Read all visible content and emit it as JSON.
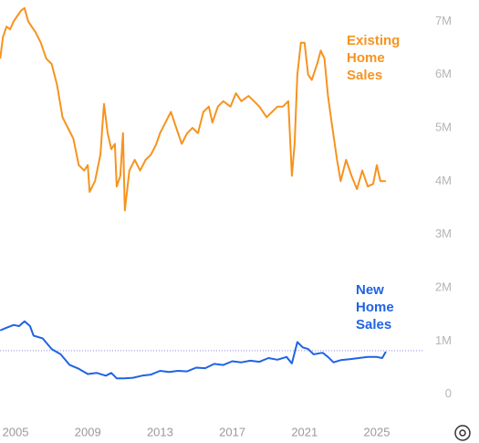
{
  "chart_data": {
    "type": "line",
    "xlim": [
      2004.14,
      2026.87
    ],
    "xticks": [
      2005,
      2009,
      2013,
      2017,
      2021,
      2025
    ],
    "ylim": [
      -400000,
      7400000
    ],
    "yticks": [
      0,
      {
        "value": 1000000,
        "label": "1M"
      },
      {
        "value": 2000000,
        "label": "2M"
      },
      {
        "value": 3000000,
        "label": "3M"
      },
      {
        "value": 4000000,
        "label": "4M"
      },
      {
        "value": 5000000,
        "label": "5M"
      },
      {
        "value": 6000000,
        "label": "6M"
      },
      {
        "value": 7000000,
        "label": "7M"
      }
    ],
    "reference_value": 820000,
    "series": [
      {
        "name": "Existing Home Sales",
        "color": "#f7931e",
        "x": [
          2004.15,
          2004.3,
          2004.5,
          2004.7,
          2004.9,
          2005.1,
          2005.3,
          2005.5,
          2005.7,
          2005.9,
          2006.1,
          2006.4,
          2006.7,
          2007.0,
          2007.3,
          2007.6,
          2007.9,
          2008.2,
          2008.5,
          2008.8,
          2009.0,
          2009.1,
          2009.4,
          2009.7,
          2009.8,
          2009.9,
          2010.1,
          2010.3,
          2010.5,
          2010.6,
          2010.8,
          2010.95,
          2011.05,
          2011.3,
          2011.6,
          2011.9,
          2012.2,
          2012.5,
          2012.8,
          2013.0,
          2013.3,
          2013.6,
          2013.9,
          2014.2,
          2014.5,
          2014.8,
          2015.1,
          2015.4,
          2015.7,
          2015.9,
          2016.2,
          2016.5,
          2016.9,
          2017.2,
          2017.5,
          2017.9,
          2018.2,
          2018.5,
          2018.9,
          2019.2,
          2019.5,
          2019.8,
          2020.1,
          2020.3,
          2020.45,
          2020.6,
          2020.8,
          2021.0,
          2021.2,
          2021.4,
          2021.7,
          2021.9,
          2022.1,
          2022.3,
          2022.5,
          2022.8,
          2023.0,
          2023.3,
          2023.6,
          2023.9,
          2024.2,
          2024.5,
          2024.8,
          2025.0,
          2025.2,
          2025.5
        ],
        "values": [
          6300000,
          6700000,
          6900000,
          6850000,
          7000000,
          7100000,
          7200000,
          7250000,
          7000000,
          6900000,
          6800000,
          6600000,
          6300000,
          6200000,
          5800000,
          5200000,
          5000000,
          4800000,
          4300000,
          4200000,
          4300000,
          3800000,
          4000000,
          4500000,
          5000000,
          5450000,
          4900000,
          4600000,
          4700000,
          3900000,
          4100000,
          4900000,
          3450000,
          4200000,
          4400000,
          4200000,
          4400000,
          4500000,
          4700000,
          4900000,
          5100000,
          5300000,
          5000000,
          4700000,
          4900000,
          5000000,
          4900000,
          5300000,
          5400000,
          5100000,
          5400000,
          5500000,
          5400000,
          5650000,
          5500000,
          5600000,
          5500000,
          5400000,
          5200000,
          5300000,
          5400000,
          5400000,
          5500000,
          4100000,
          4700000,
          6000000,
          6600000,
          6600000,
          6000000,
          5900000,
          6200000,
          6450000,
          6300000,
          5600000,
          5100000,
          4400000,
          4000000,
          4400000,
          4100000,
          3850000,
          4200000,
          3900000,
          3950000,
          4300000,
          4000000,
          4000000
        ]
      },
      {
        "name": "New Home Sales",
        "color": "#1f63e6",
        "x": [
          2004.15,
          2004.5,
          2004.9,
          2005.2,
          2005.5,
          2005.8,
          2006.0,
          2006.5,
          2007.0,
          2007.5,
          2008.0,
          2008.5,
          2009.0,
          2009.5,
          2010.0,
          2010.3,
          2010.6,
          2011.0,
          2011.5,
          2012.0,
          2012.5,
          2013.0,
          2013.5,
          2014.0,
          2014.5,
          2015.0,
          2015.5,
          2016.0,
          2016.5,
          2017.0,
          2017.5,
          2018.0,
          2018.5,
          2019.0,
          2019.5,
          2020.0,
          2020.3,
          2020.6,
          2020.9,
          2021.2,
          2021.5,
          2022.0,
          2022.3,
          2022.6,
          2023.0,
          2023.5,
          2024.0,
          2024.5,
          2025.0,
          2025.3,
          2025.5
        ],
        "values": [
          1200000,
          1250000,
          1300000,
          1280000,
          1370000,
          1280000,
          1100000,
          1050000,
          850000,
          750000,
          550000,
          480000,
          380000,
          400000,
          350000,
          400000,
          300000,
          300000,
          310000,
          350000,
          370000,
          440000,
          420000,
          440000,
          430000,
          500000,
          490000,
          570000,
          550000,
          620000,
          600000,
          630000,
          610000,
          680000,
          650000,
          700000,
          580000,
          980000,
          880000,
          850000,
          750000,
          780000,
          700000,
          600000,
          640000,
          660000,
          680000,
          700000,
          700000,
          680000,
          800000
        ]
      }
    ]
  }
}
